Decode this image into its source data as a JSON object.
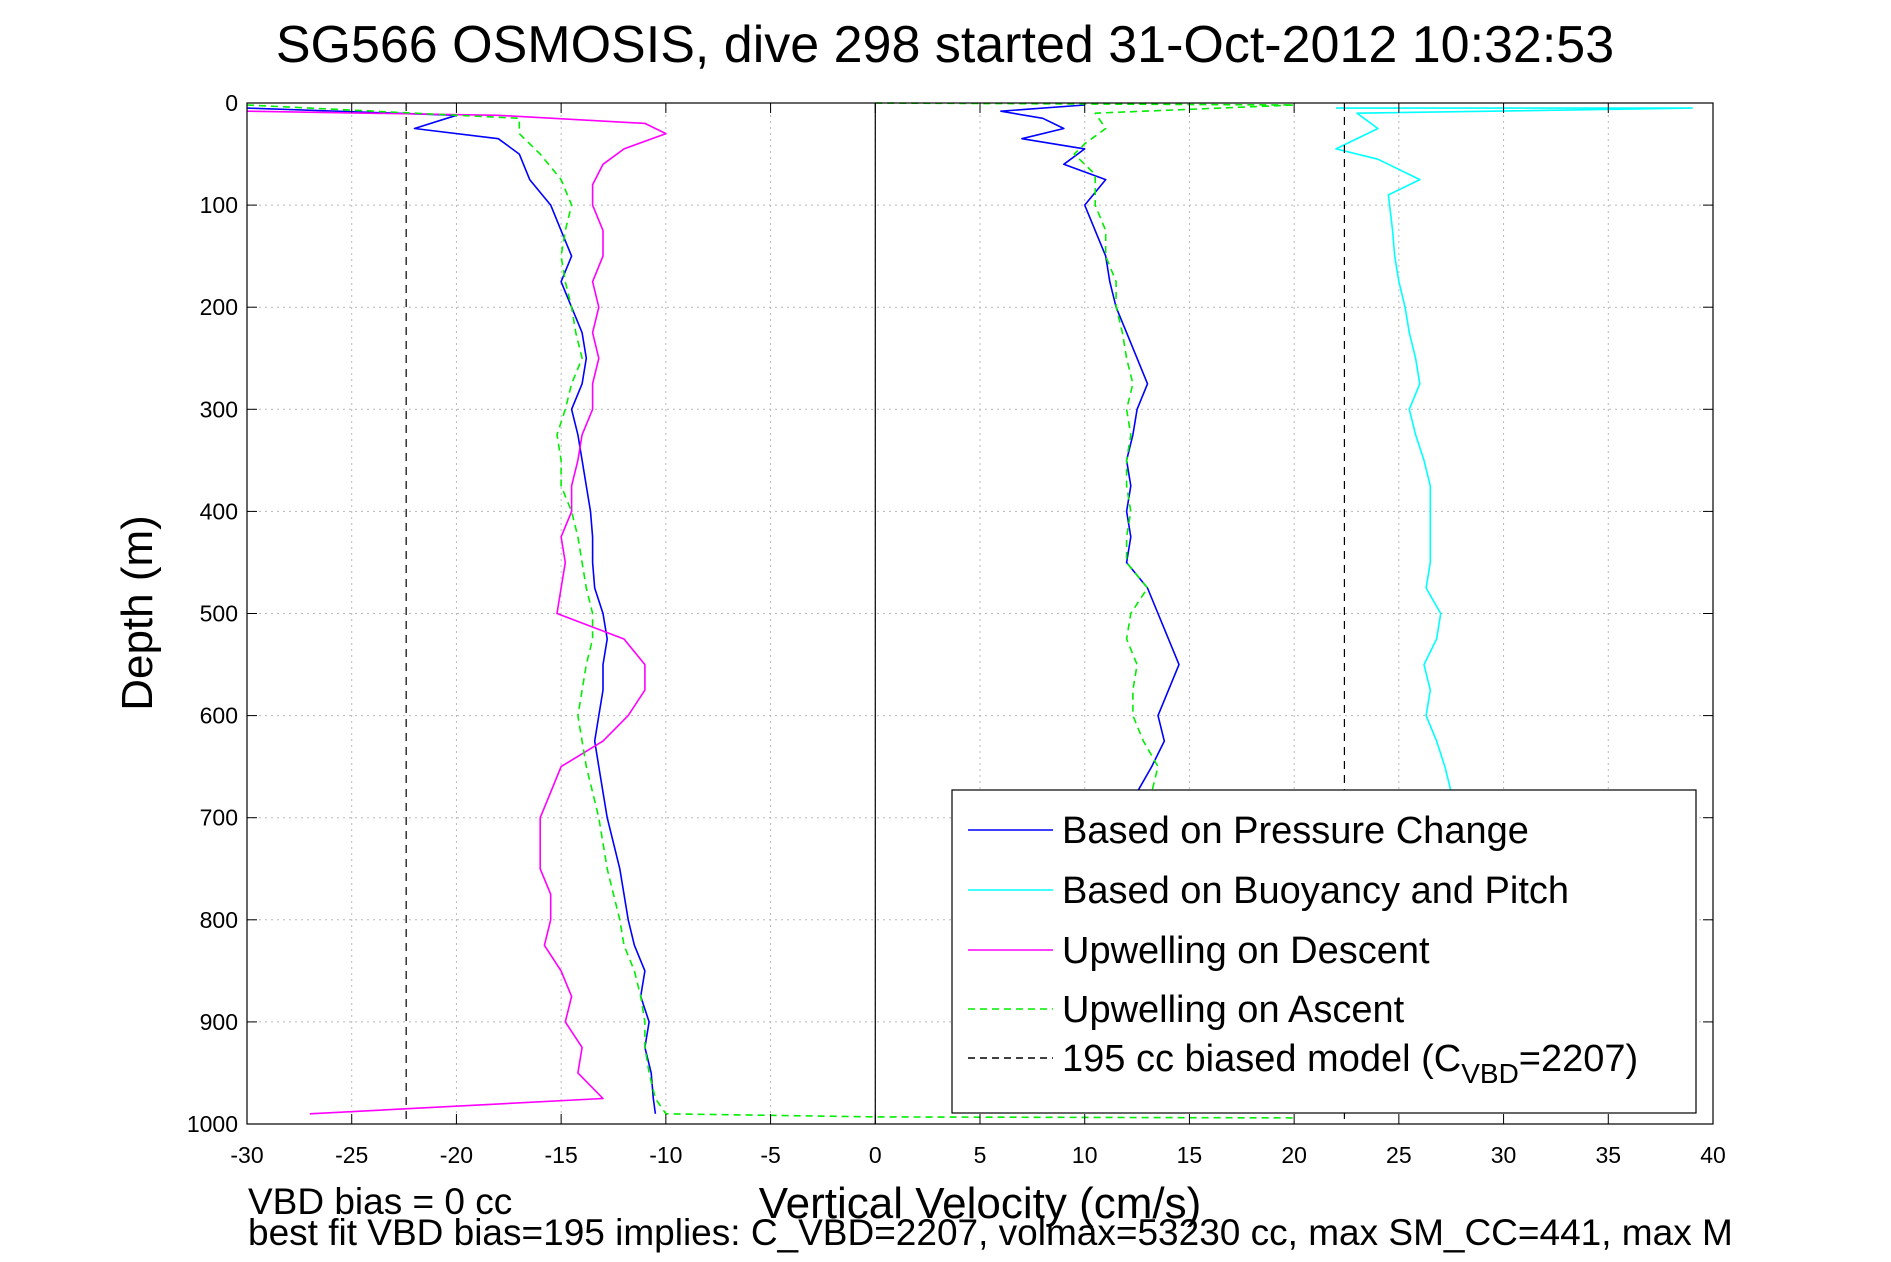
{
  "chart_data": {
    "type": "line",
    "title": "SG566 OSMOSIS, dive 298 started 31-Oct-2012 10:32:53",
    "xlabel": "Vertical Velocity (cm/s)",
    "ylabel": "Depth (m)",
    "xlim": [
      -30,
      40
    ],
    "ylim": [
      0,
      1000
    ],
    "y_reversed": true,
    "grid": true,
    "legend_position": "lower-right",
    "x_ticks": [
      -30,
      -25,
      -20,
      -15,
      -10,
      -5,
      0,
      5,
      10,
      15,
      20,
      25,
      30,
      35,
      40
    ],
    "y_ticks": [
      0,
      100,
      200,
      300,
      400,
      500,
      600,
      700,
      800,
      900,
      1000
    ],
    "series": [
      {
        "name": "Based on Pressure Change",
        "color": "#0000ff",
        "style": "solid",
        "descent": [
          [
            -30,
            5
          ],
          [
            -20,
            12
          ],
          [
            -22,
            25
          ],
          [
            -18,
            35
          ],
          [
            -17,
            50
          ],
          [
            -16.5,
            75
          ],
          [
            -15.5,
            100
          ],
          [
            -15,
            125
          ],
          [
            -14.5,
            150
          ],
          [
            -15,
            175
          ],
          [
            -14.5,
            200
          ],
          [
            -14,
            225
          ],
          [
            -13.8,
            250
          ],
          [
            -14,
            275
          ],
          [
            -14.5,
            300
          ],
          [
            -14.2,
            325
          ],
          [
            -14,
            350
          ],
          [
            -13.8,
            375
          ],
          [
            -13.6,
            400
          ],
          [
            -13.5,
            425
          ],
          [
            -13.5,
            450
          ],
          [
            -13.4,
            475
          ],
          [
            -13,
            500
          ],
          [
            -12.8,
            525
          ],
          [
            -13,
            550
          ],
          [
            -13,
            575
          ],
          [
            -13.2,
            600
          ],
          [
            -13.4,
            625
          ],
          [
            -13.2,
            650
          ],
          [
            -13,
            675
          ],
          [
            -12.8,
            700
          ],
          [
            -12.5,
            725
          ],
          [
            -12.2,
            750
          ],
          [
            -12,
            775
          ],
          [
            -11.8,
            800
          ],
          [
            -11.5,
            825
          ],
          [
            -11,
            850
          ],
          [
            -11.2,
            875
          ],
          [
            -10.8,
            900
          ],
          [
            -11,
            925
          ],
          [
            -10.7,
            950
          ],
          [
            -10.6,
            975
          ],
          [
            -10.5,
            990
          ]
        ],
        "ascent": [
          [
            10,
            2
          ],
          [
            6,
            8
          ],
          [
            8,
            15
          ],
          [
            9,
            25
          ],
          [
            7,
            35
          ],
          [
            10,
            45
          ],
          [
            9,
            60
          ],
          [
            11,
            75
          ],
          [
            10,
            100
          ],
          [
            10.5,
            125
          ],
          [
            11,
            150
          ],
          [
            11.2,
            175
          ],
          [
            11.5,
            200
          ],
          [
            12,
            225
          ],
          [
            12.5,
            250
          ],
          [
            13,
            275
          ],
          [
            12.5,
            300
          ],
          [
            12.3,
            325
          ],
          [
            12,
            350
          ],
          [
            12.2,
            375
          ],
          [
            12,
            400
          ],
          [
            12.2,
            425
          ],
          [
            12,
            450
          ],
          [
            13,
            475
          ],
          [
            13.5,
            500
          ],
          [
            14,
            525
          ],
          [
            14.5,
            550
          ],
          [
            14,
            575
          ],
          [
            13.5,
            600
          ],
          [
            13.8,
            625
          ],
          [
            13.2,
            650
          ],
          [
            12.5,
            675
          ]
        ]
      },
      {
        "name": "Based on Buoyancy and Pitch",
        "color": "#00ffff",
        "style": "solid",
        "points": [
          [
            22,
            5
          ],
          [
            39,
            5
          ],
          [
            23,
            10
          ],
          [
            24,
            25
          ],
          [
            22,
            45
          ],
          [
            24,
            55
          ],
          [
            26,
            75
          ],
          [
            24.5,
            90
          ],
          [
            24.7,
            125
          ],
          [
            24.8,
            150
          ],
          [
            25,
            175
          ],
          [
            25.3,
            200
          ],
          [
            25.5,
            225
          ],
          [
            25.8,
            250
          ],
          [
            26,
            275
          ],
          [
            25.5,
            300
          ],
          [
            25.8,
            325
          ],
          [
            26.2,
            350
          ],
          [
            26.5,
            375
          ],
          [
            26.5,
            400
          ],
          [
            26.5,
            425
          ],
          [
            26.5,
            450
          ],
          [
            26.3,
            475
          ],
          [
            27,
            500
          ],
          [
            26.8,
            525
          ],
          [
            26.2,
            550
          ],
          [
            26.5,
            575
          ],
          [
            26.3,
            600
          ],
          [
            26.8,
            625
          ],
          [
            27.2,
            650
          ],
          [
            27.5,
            675
          ]
        ]
      },
      {
        "name": "Upwelling on Descent",
        "color": "#ff00ff",
        "style": "solid",
        "points": [
          [
            -30,
            8
          ],
          [
            -18,
            12
          ],
          [
            -11,
            20
          ],
          [
            -10,
            30
          ],
          [
            -12,
            45
          ],
          [
            -13,
            60
          ],
          [
            -13.5,
            80
          ],
          [
            -13.5,
            100
          ],
          [
            -13,
            125
          ],
          [
            -13,
            150
          ],
          [
            -13.5,
            175
          ],
          [
            -13.2,
            200
          ],
          [
            -13.5,
            225
          ],
          [
            -13.2,
            250
          ],
          [
            -13.5,
            275
          ],
          [
            -13.5,
            300
          ],
          [
            -14,
            325
          ],
          [
            -14.2,
            350
          ],
          [
            -14.5,
            375
          ],
          [
            -14.5,
            400
          ],
          [
            -15,
            425
          ],
          [
            -14.8,
            450
          ],
          [
            -15,
            475
          ],
          [
            -15.2,
            500
          ],
          [
            -12,
            525
          ],
          [
            -11,
            550
          ],
          [
            -11,
            575
          ],
          [
            -11.8,
            600
          ],
          [
            -13,
            625
          ],
          [
            -15,
            650
          ],
          [
            -15.5,
            675
          ],
          [
            -16,
            700
          ],
          [
            -16,
            725
          ],
          [
            -16,
            750
          ],
          [
            -15.5,
            775
          ],
          [
            -15.5,
            800
          ],
          [
            -15.8,
            825
          ],
          [
            -15,
            850
          ],
          [
            -14.5,
            875
          ],
          [
            -14.8,
            900
          ],
          [
            -14,
            925
          ],
          [
            -14.2,
            950
          ],
          [
            -13,
            975
          ],
          [
            -27,
            990
          ]
        ]
      },
      {
        "name": "Upwelling on Ascent",
        "color": "#00ee00",
        "style": "dashed",
        "descent": [
          [
            -30,
            2
          ],
          [
            -17,
            15
          ],
          [
            -17,
            30
          ],
          [
            -16,
            50
          ],
          [
            -15,
            75
          ],
          [
            -14.5,
            100
          ],
          [
            -14.8,
            125
          ],
          [
            -15,
            150
          ],
          [
            -14.8,
            175
          ],
          [
            -14.5,
            200
          ],
          [
            -14.3,
            225
          ],
          [
            -14,
            250
          ],
          [
            -14.5,
            275
          ],
          [
            -14.8,
            300
          ],
          [
            -15.2,
            325
          ],
          [
            -15,
            350
          ],
          [
            -15,
            375
          ],
          [
            -14.5,
            400
          ],
          [
            -14.2,
            425
          ],
          [
            -14,
            450
          ],
          [
            -13.8,
            475
          ],
          [
            -13.5,
            500
          ],
          [
            -13.5,
            525
          ],
          [
            -13.8,
            550
          ],
          [
            -14,
            575
          ],
          [
            -14.2,
            600
          ],
          [
            -14,
            625
          ],
          [
            -13.8,
            650
          ],
          [
            -13.5,
            675
          ],
          [
            -13.2,
            700
          ],
          [
            -13,
            725
          ],
          [
            -12.8,
            750
          ],
          [
            -12.5,
            775
          ],
          [
            -12.2,
            800
          ],
          [
            -12,
            825
          ],
          [
            -11.5,
            850
          ],
          [
            -11.2,
            875
          ],
          [
            -11,
            900
          ],
          [
            -11,
            925
          ],
          [
            -10.8,
            950
          ],
          [
            -10.5,
            975
          ],
          [
            -10,
            990
          ],
          [
            0,
            993
          ],
          [
            20,
            994
          ]
        ],
        "ascent": [
          [
            0,
            0
          ],
          [
            20,
            2
          ],
          [
            10.5,
            10
          ],
          [
            11,
            25
          ],
          [
            10,
            40
          ],
          [
            9.5,
            50
          ],
          [
            10.5,
            70
          ],
          [
            10.5,
            100
          ],
          [
            11,
            125
          ],
          [
            11,
            150
          ],
          [
            11.5,
            175
          ],
          [
            11.5,
            200
          ],
          [
            11.8,
            225
          ],
          [
            12,
            250
          ],
          [
            12.3,
            275
          ],
          [
            12,
            300
          ],
          [
            12.2,
            325
          ],
          [
            12,
            350
          ],
          [
            12,
            375
          ],
          [
            12.2,
            400
          ],
          [
            12,
            425
          ],
          [
            12,
            450
          ],
          [
            13,
            475
          ],
          [
            12.2,
            500
          ],
          [
            12,
            525
          ],
          [
            12.5,
            550
          ],
          [
            12.3,
            575
          ],
          [
            12.3,
            600
          ],
          [
            12.8,
            625
          ],
          [
            13.5,
            650
          ],
          [
            13.2,
            675
          ]
        ]
      },
      {
        "name": "195 cc biased model (C",
        "name_subscript": "VBD",
        "name_suffix": "=2207)",
        "color": "#000000",
        "style": "dashed",
        "x_values": [
          -22.4,
          22.4
        ]
      }
    ],
    "annotations": [
      "VBD bias = 0 cc",
      "best fit VBD bias=195 implies: C_VBD=2207, volmax=53230 cc, max SM_CC=441, max M"
    ]
  }
}
